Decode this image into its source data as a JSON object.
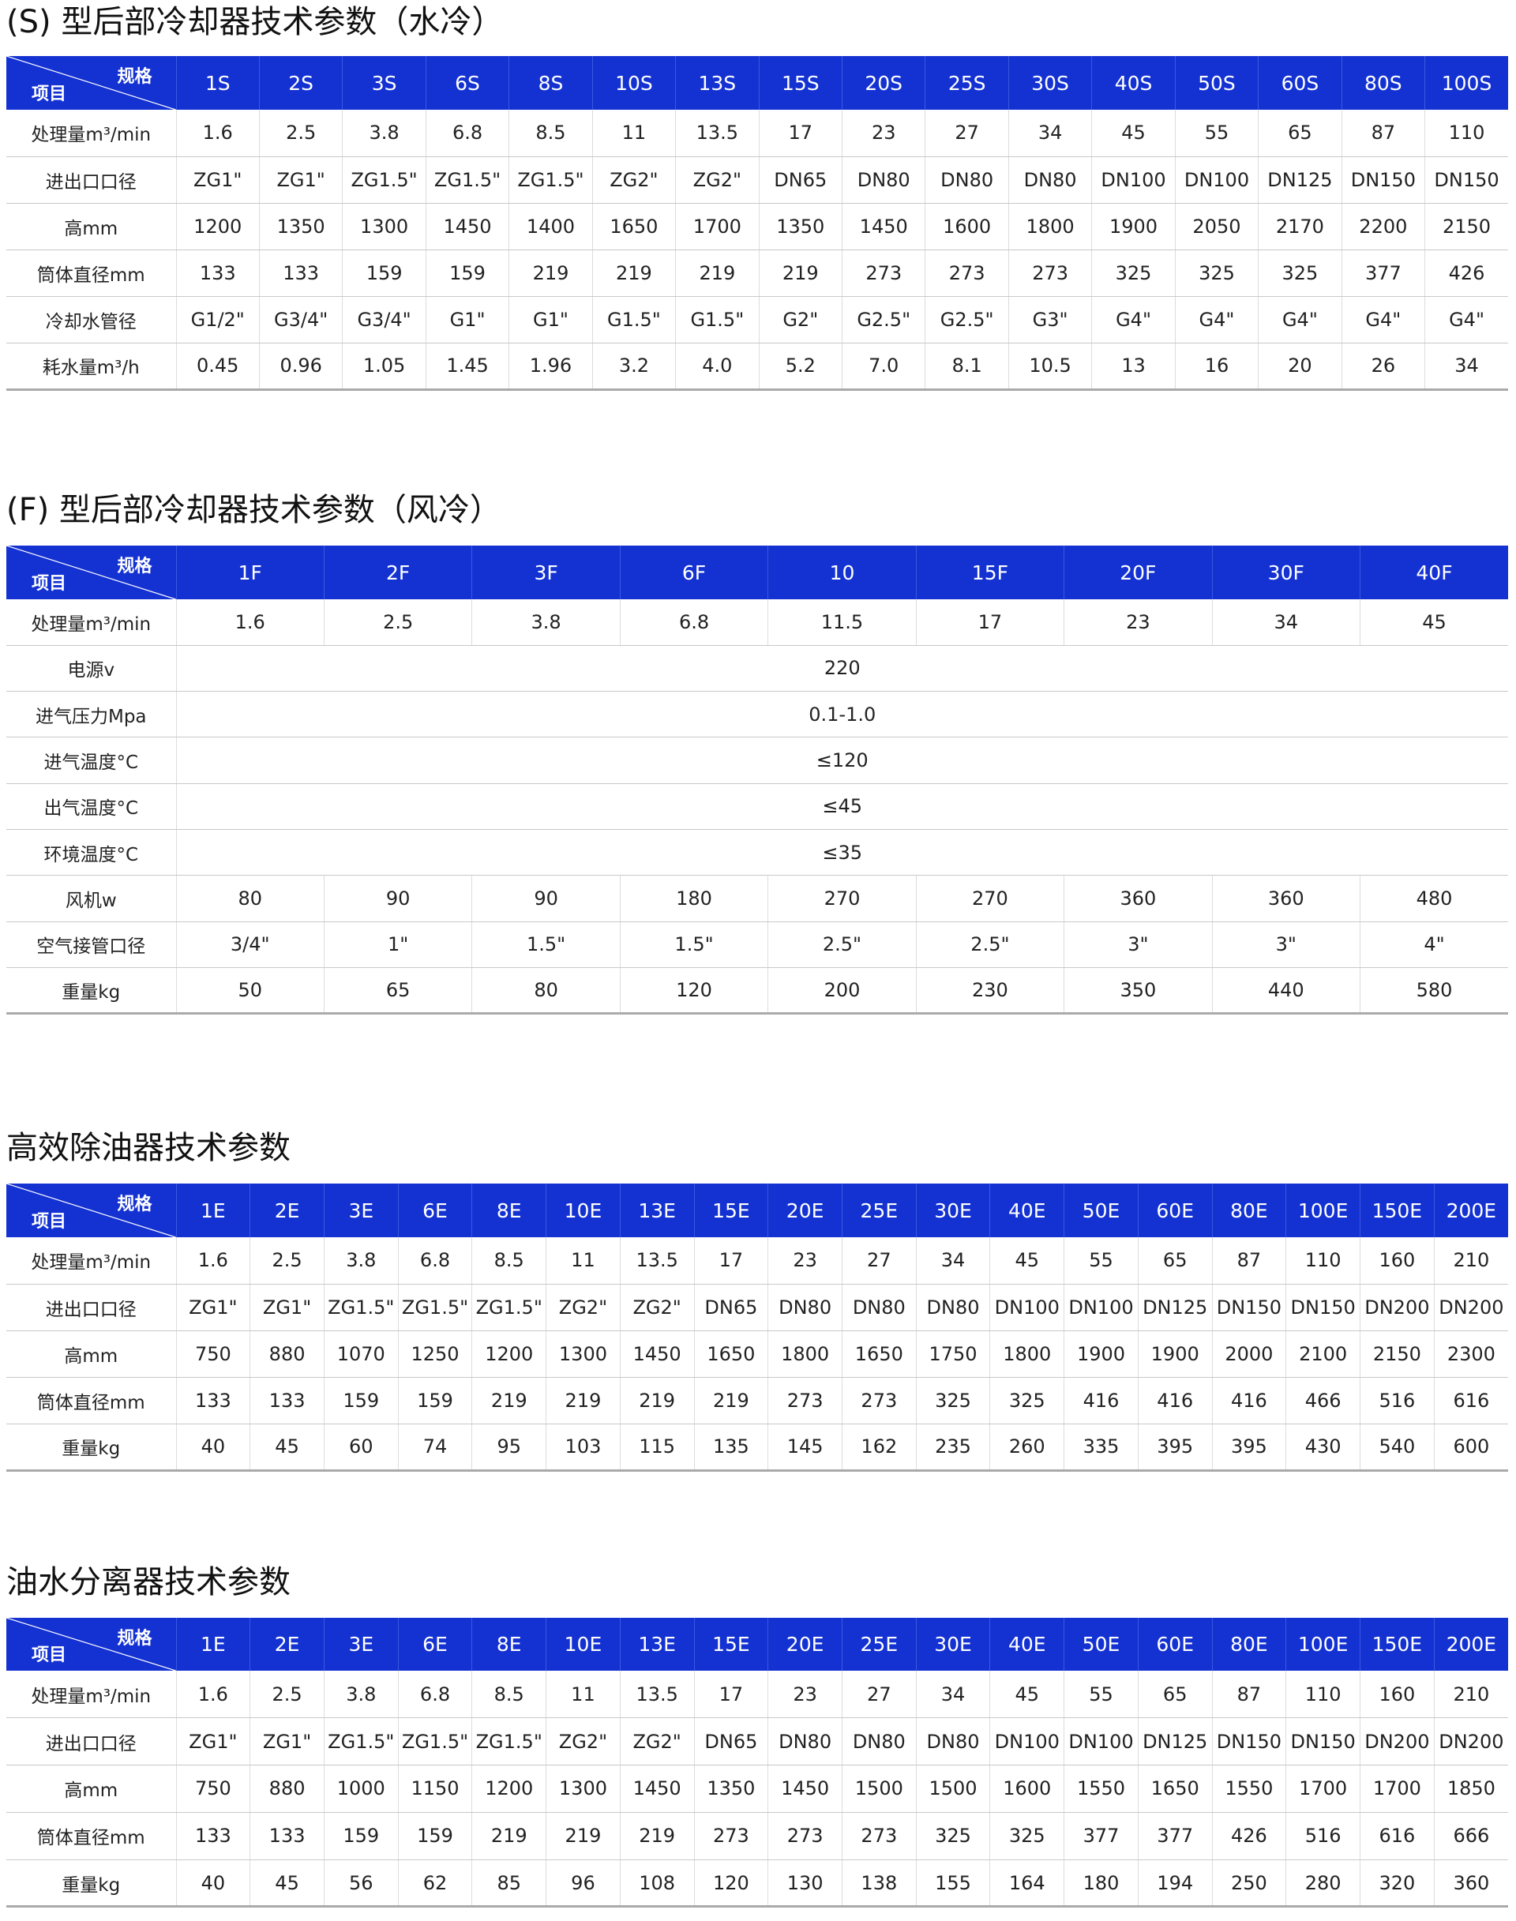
{
  "colors": {
    "header_bg": "#1432d2",
    "header_text": "#ffffff"
  },
  "corner": {
    "spec": "规格",
    "item": "项目"
  },
  "tables": [
    {
      "title": "(S) 型后部冷却器技术参数（水冷）",
      "columns": [
        "1S",
        "2S",
        "3S",
        "6S",
        "8S",
        "10S",
        "13S",
        "15S",
        "20S",
        "25S",
        "30S",
        "40S",
        "50S",
        "60S",
        "80S",
        "100S"
      ],
      "rows": [
        {
          "label": "处理量m³/min",
          "values": [
            "1.6",
            "2.5",
            "3.8",
            "6.8",
            "8.5",
            "11",
            "13.5",
            "17",
            "23",
            "27",
            "34",
            "45",
            "55",
            "65",
            "87",
            "110"
          ]
        },
        {
          "label": "进出口口径",
          "values": [
            "ZG1\"",
            "ZG1\"",
            "ZG1.5\"",
            "ZG1.5\"",
            "ZG1.5\"",
            "ZG2\"",
            "ZG2\"",
            "DN65",
            "DN80",
            "DN80",
            "DN80",
            "DN100",
            "DN100",
            "DN125",
            "DN150",
            "DN150"
          ]
        },
        {
          "label": "高mm",
          "values": [
            "1200",
            "1350",
            "1300",
            "1450",
            "1400",
            "1650",
            "1700",
            "1350",
            "1450",
            "1600",
            "1800",
            "1900",
            "2050",
            "2170",
            "2200",
            "2150"
          ]
        },
        {
          "label": "筒体直径mm",
          "values": [
            "133",
            "133",
            "159",
            "159",
            "219",
            "219",
            "219",
            "219",
            "273",
            "273",
            "273",
            "325",
            "325",
            "325",
            "377",
            "426"
          ]
        },
        {
          "label": "冷却水管径",
          "values": [
            "G1/2\"",
            "G3/4\"",
            "G3/4\"",
            "G1\"",
            "G1\"",
            "G1.5\"",
            "G1.5\"",
            "G2\"",
            "G2.5\"",
            "G2.5\"",
            "G3\"",
            "G4\"",
            "G4\"",
            "G4\"",
            "G4\"",
            "G4\""
          ]
        },
        {
          "label": "耗水量m³/h",
          "values": [
            "0.45",
            "0.96",
            "1.05",
            "1.45",
            "1.96",
            "3.2",
            "4.0",
            "5.2",
            "7.0",
            "8.1",
            "10.5",
            "13",
            "16",
            "20",
            "26",
            "34"
          ]
        }
      ]
    },
    {
      "title": "(F) 型后部冷却器技术参数（风冷）",
      "columns": [
        "1F",
        "2F",
        "3F",
        "6F",
        "10",
        "15F",
        "20F",
        "30F",
        "40F"
      ],
      "rows": [
        {
          "label": "处理量m³/min",
          "values": [
            "1.6",
            "2.5",
            "3.8",
            "6.8",
            "11.5",
            "17",
            "23",
            "34",
            "45"
          ]
        },
        {
          "label": "电源v",
          "merged": "220"
        },
        {
          "label": "进气压力Mpa",
          "merged": "0.1-1.0"
        },
        {
          "label": "进气温度°C",
          "merged": "≤120"
        },
        {
          "label": "出气温度°C",
          "merged": "≤45"
        },
        {
          "label": "环境温度°C",
          "merged": "≤35"
        },
        {
          "label": "风机w",
          "values": [
            "80",
            "90",
            "90",
            "180",
            "270",
            "270",
            "360",
            "360",
            "480"
          ]
        },
        {
          "label": "空气接管口径",
          "values": [
            "3/4\"",
            "1\"",
            "1.5\"",
            "1.5\"",
            "2.5\"",
            "2.5\"",
            "3\"",
            "3\"",
            "4\""
          ]
        },
        {
          "label": "重量kg",
          "values": [
            "50",
            "65",
            "80",
            "120",
            "200",
            "230",
            "350",
            "440",
            "580"
          ]
        }
      ]
    },
    {
      "title": "高效除油器技术参数",
      "columns": [
        "1E",
        "2E",
        "3E",
        "6E",
        "8E",
        "10E",
        "13E",
        "15E",
        "20E",
        "25E",
        "30E",
        "40E",
        "50E",
        "60E",
        "80E",
        "100E",
        "150E",
        "200E"
      ],
      "rows": [
        {
          "label": "处理量m³/min",
          "values": [
            "1.6",
            "2.5",
            "3.8",
            "6.8",
            "8.5",
            "11",
            "13.5",
            "17",
            "23",
            "27",
            "34",
            "45",
            "55",
            "65",
            "87",
            "110",
            "160",
            "210"
          ]
        },
        {
          "label": "进出口口径",
          "values": [
            "ZG1\"",
            "ZG1\"",
            "ZG1.5\"",
            "ZG1.5\"",
            "ZG1.5\"",
            "ZG2\"",
            "ZG2\"",
            "DN65",
            "DN80",
            "DN80",
            "DN80",
            "DN100",
            "DN100",
            "DN125",
            "DN150",
            "DN150",
            "DN200",
            "DN200"
          ]
        },
        {
          "label": "高mm",
          "values": [
            "750",
            "880",
            "1070",
            "1250",
            "1200",
            "1300",
            "1450",
            "1650",
            "1800",
            "1650",
            "1750",
            "1800",
            "1900",
            "1900",
            "2000",
            "2100",
            "2150",
            "2300"
          ]
        },
        {
          "label": "筒体直径mm",
          "values": [
            "133",
            "133",
            "159",
            "159",
            "219",
            "219",
            "219",
            "219",
            "273",
            "273",
            "325",
            "325",
            "416",
            "416",
            "416",
            "466",
            "516",
            "616"
          ]
        },
        {
          "label": "重量kg",
          "values": [
            "40",
            "45",
            "60",
            "74",
            "95",
            "103",
            "115",
            "135",
            "145",
            "162",
            "235",
            "260",
            "335",
            "395",
            "395",
            "430",
            "540",
            "600"
          ]
        }
      ]
    },
    {
      "title": "油水分离器技术参数",
      "columns": [
        "1E",
        "2E",
        "3E",
        "6E",
        "8E",
        "10E",
        "13E",
        "15E",
        "20E",
        "25E",
        "30E",
        "40E",
        "50E",
        "60E",
        "80E",
        "100E",
        "150E",
        "200E"
      ],
      "rows": [
        {
          "label": "处理量m³/min",
          "values": [
            "1.6",
            "2.5",
            "3.8",
            "6.8",
            "8.5",
            "11",
            "13.5",
            "17",
            "23",
            "27",
            "34",
            "45",
            "55",
            "65",
            "87",
            "110",
            "160",
            "210"
          ]
        },
        {
          "label": "进出口口径",
          "values": [
            "ZG1\"",
            "ZG1\"",
            "ZG1.5\"",
            "ZG1.5\"",
            "ZG1.5\"",
            "ZG2\"",
            "ZG2\"",
            "DN65",
            "DN80",
            "DN80",
            "DN80",
            "DN100",
            "DN100",
            "DN125",
            "DN150",
            "DN150",
            "DN200",
            "DN200"
          ]
        },
        {
          "label": "高mm",
          "values": [
            "750",
            "880",
            "1000",
            "1150",
            "1200",
            "1300",
            "1450",
            "1350",
            "1450",
            "1500",
            "1500",
            "1600",
            "1550",
            "1650",
            "1550",
            "1700",
            "1700",
            "1850"
          ]
        },
        {
          "label": "筒体直径mm",
          "values": [
            "133",
            "133",
            "159",
            "159",
            "219",
            "219",
            "219",
            "273",
            "273",
            "273",
            "325",
            "325",
            "377",
            "377",
            "426",
            "516",
            "616",
            "666"
          ]
        },
        {
          "label": "重量kg",
          "values": [
            "40",
            "45",
            "56",
            "62",
            "85",
            "96",
            "108",
            "120",
            "130",
            "138",
            "155",
            "164",
            "180",
            "194",
            "250",
            "280",
            "320",
            "360"
          ]
        }
      ]
    }
  ]
}
